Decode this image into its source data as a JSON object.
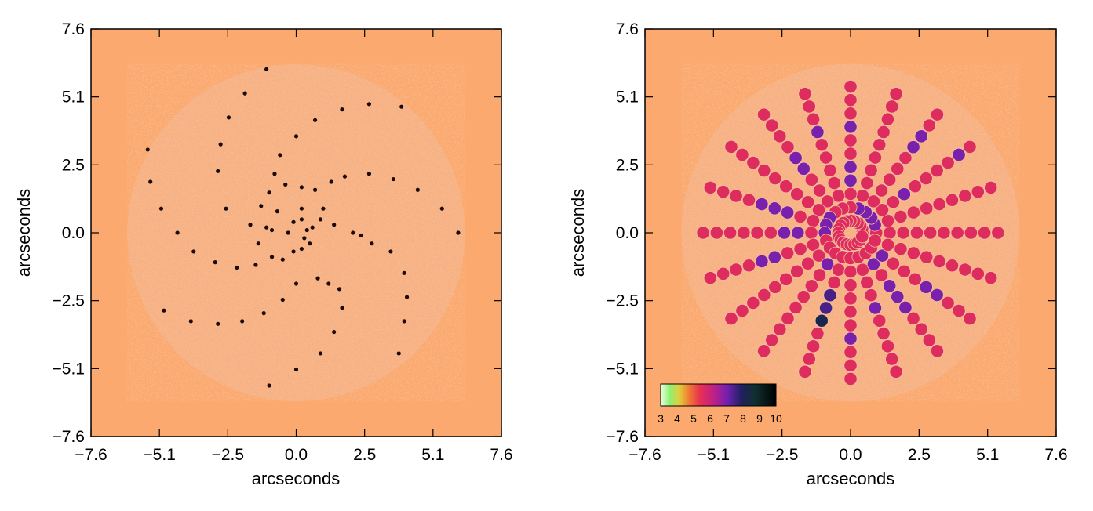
{
  "colors": {
    "background_field": "#fba96e",
    "noise_disk": "#f6b48a",
    "point_source": "#1a0a08",
    "axis": "#000000"
  },
  "chart_data": [
    {
      "type": "scatter",
      "title": "",
      "xlabel": "arcseconds",
      "ylabel": "arcseconds",
      "xlim": [
        -7.6,
        7.6
      ],
      "ylim": [
        -7.6,
        7.6
      ],
      "xticks": [
        "−7.6",
        "−5.1",
        "−2.5",
        "0.0",
        "2.5",
        "5.1",
        "7.6"
      ],
      "yticks": [
        "7.6",
        "5.1",
        "2.5",
        "0.0",
        "−2.5",
        "−5.1",
        "−7.6"
      ],
      "disk_radius": 6.25,
      "description_points": "point sources on noisy disk",
      "points": [
        [
          -1.1,
          6.1
        ],
        [
          -1.9,
          5.2
        ],
        [
          -2.5,
          4.3
        ],
        [
          -2.8,
          3.3
        ],
        [
          -2.9,
          2.3
        ],
        [
          -2.6,
          0.9
        ],
        [
          -1.7,
          0.3
        ],
        [
          -0.9,
          0.1
        ],
        [
          -0.3,
          0.0
        ],
        [
          -0.1,
          0.4
        ],
        [
          0.2,
          0.5
        ],
        [
          0.4,
          0.1
        ],
        [
          0.5,
          -0.4
        ],
        [
          0.2,
          -0.6
        ],
        [
          0.0,
          -1.9
        ],
        [
          -0.5,
          -1.0
        ],
        [
          -0.9,
          -0.9
        ],
        [
          -1.5,
          -1.2
        ],
        [
          -2.2,
          -1.3
        ],
        [
          -3.0,
          -1.1
        ],
        [
          -3.8,
          -0.7
        ],
        [
          -4.4,
          0.0
        ],
        [
          -5.0,
          0.9
        ],
        [
          -5.4,
          1.9
        ],
        [
          -5.5,
          3.1
        ],
        [
          -4.9,
          -2.9
        ],
        [
          -3.9,
          -3.3
        ],
        [
          -2.9,
          -3.4
        ],
        [
          -2.0,
          -3.3
        ],
        [
          -1.2,
          -3.0
        ],
        [
          -0.5,
          -2.5
        ],
        [
          0.8,
          -1.7
        ],
        [
          1.2,
          -1.9
        ],
        [
          1.6,
          -2.1
        ],
        [
          1.7,
          -2.8
        ],
        [
          1.4,
          -3.7
        ],
        [
          0.9,
          -4.5
        ],
        [
          0.0,
          -5.1
        ],
        [
          -1.0,
          -5.7
        ],
        [
          3.8,
          -4.5
        ],
        [
          4.0,
          -3.3
        ],
        [
          4.1,
          -2.4
        ],
        [
          4.0,
          -1.5
        ],
        [
          3.5,
          -0.7
        ],
        [
          2.8,
          -0.4
        ],
        [
          2.1,
          0.0
        ],
        [
          1.4,
          0.3
        ],
        [
          0.9,
          0.5
        ],
        [
          0.2,
          0.9
        ],
        [
          -0.7,
          0.8
        ],
        [
          -1.1,
          0.2
        ],
        [
          -1.3,
          1.0
        ],
        [
          -1.0,
          1.5
        ],
        [
          -0.8,
          2.2
        ],
        [
          -0.6,
          2.9
        ],
        [
          0.0,
          3.6
        ],
        [
          0.7,
          1.6
        ],
        [
          1.3,
          1.9
        ],
        [
          1.8,
          2.1
        ],
        [
          2.7,
          2.2
        ],
        [
          3.6,
          2.0
        ],
        [
          4.5,
          1.6
        ],
        [
          5.4,
          0.9
        ],
        [
          6.0,
          0.0
        ],
        [
          3.9,
          4.7
        ],
        [
          2.7,
          4.8
        ],
        [
          1.7,
          4.6
        ],
        [
          0.7,
          4.2
        ],
        [
          0.2,
          1.7
        ],
        [
          0.6,
          0.2
        ],
        [
          -0.1,
          -0.7
        ],
        [
          1.0,
          0.9
        ],
        [
          -0.4,
          1.8
        ],
        [
          2.4,
          -0.1
        ],
        [
          -1.4,
          -0.4
        ],
        [
          0.3,
          -0.2
        ]
      ]
    },
    {
      "type": "scatter",
      "title": "",
      "xlabel": "arcseconds",
      "ylabel": "arcseconds",
      "xlim": [
        -7.6,
        7.6
      ],
      "ylim": [
        -7.6,
        7.6
      ],
      "xticks": [
        "−7.6",
        "−5.1",
        "−2.5",
        "0.0",
        "2.5",
        "5.1",
        "7.6"
      ],
      "yticks": [
        "7.6",
        "5.1",
        "2.5",
        "0.0",
        "−2.5",
        "−5.1",
        "−7.6"
      ],
      "disk_radius": 6.25,
      "pattern": "radial spokes of sampled positions",
      "spokes": 20,
      "r_min": 0.45,
      "r_max": 5.9,
      "step": 0.5,
      "default_value": 5.6,
      "highlighted": [
        {
          "x": -1.2,
          "y": 3.9,
          "value": 7.0
        },
        {
          "x": 0.0,
          "y": 4.1,
          "value": 7.0
        },
        {
          "x": 2.5,
          "y": 3.4,
          "value": 7.0
        },
        {
          "x": 4.1,
          "y": 2.9,
          "value": 7.0
        },
        {
          "x": -1.8,
          "y": 2.6,
          "value": 7.0
        },
        {
          "x": -1.6,
          "y": 2.3,
          "value": 7.0
        },
        {
          "x": 0.0,
          "y": 2.3,
          "value": 7.0
        },
        {
          "x": 1.9,
          "y": 1.4,
          "value": 7.0
        },
        {
          "x": -3.1,
          "y": 1.0,
          "value": 7.0
        },
        {
          "x": -2.3,
          "y": 0.7,
          "value": 7.0
        },
        {
          "x": 0.5,
          "y": 0.9,
          "value": 7.0
        },
        {
          "x": 1.0,
          "y": 0.4,
          "value": 7.0
        },
        {
          "x": -2.3,
          "y": 0.0,
          "value": 7.0
        },
        {
          "x": -0.9,
          "y": 0.3,
          "value": 7.0
        },
        {
          "x": 1.0,
          "y": -0.9,
          "value": 7.0
        },
        {
          "x": -3.1,
          "y": -1.0,
          "value": 7.0
        },
        {
          "x": -0.9,
          "y": -1.1,
          "value": 7.0
        },
        {
          "x": -0.8,
          "y": -2.6,
          "value": 7.5
        },
        {
          "x": 1.0,
          "y": -2.6,
          "value": 7.0
        },
        {
          "x": 1.6,
          "y": -2.2,
          "value": 7.0
        },
        {
          "x": 1.9,
          "y": -2.6,
          "value": 7.0
        },
        {
          "x": 3.1,
          "y": -2.1,
          "value": 7.0
        },
        {
          "x": -1.0,
          "y": -3.1,
          "value": 8.2
        },
        {
          "x": 0.0,
          "y": -4.1,
          "value": 7.0
        }
      ],
      "colorbar": {
        "min": 3,
        "max": 10,
        "tick_labels": [
          "3",
          "4",
          "5",
          "6",
          "7",
          "8",
          "9",
          "10"
        ]
      }
    }
  ]
}
